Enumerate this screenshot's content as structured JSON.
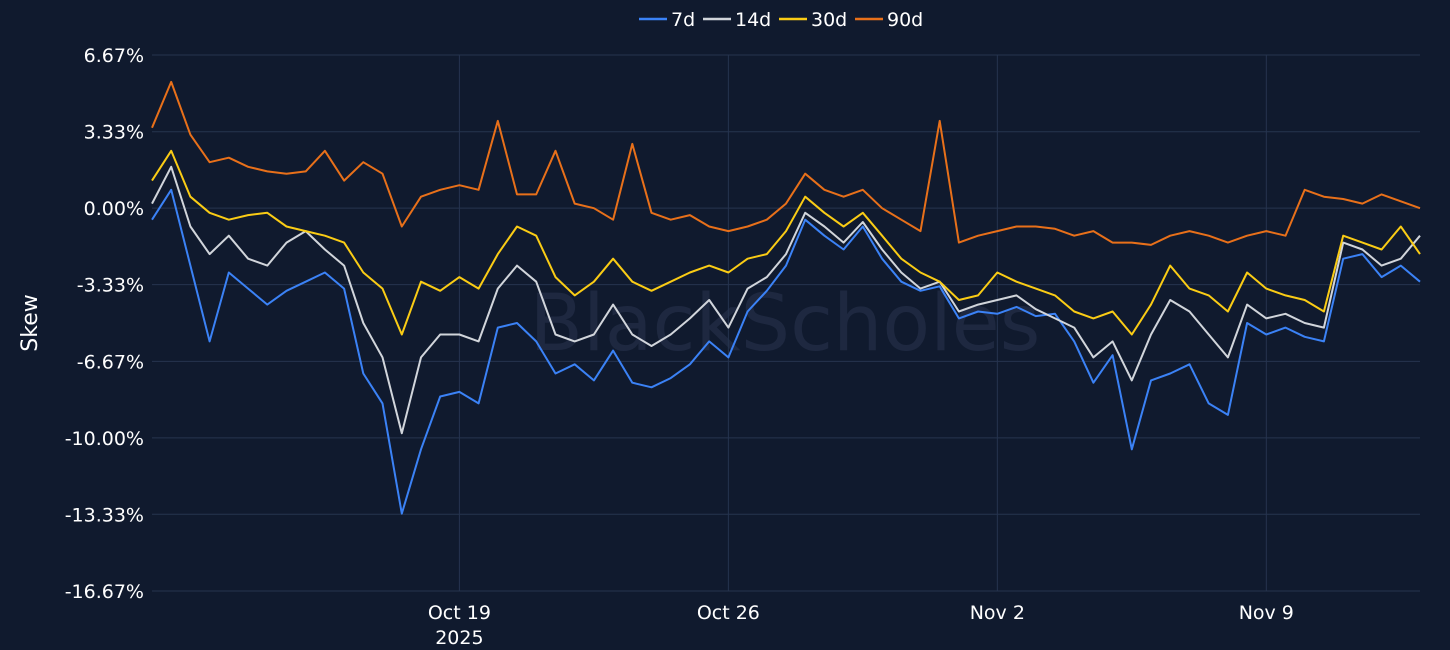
{
  "watermark": "BlackScholes",
  "chart_data": {
    "type": "line",
    "ylabel": "Skew",
    "xlabel": "",
    "title": "",
    "ylim": [
      -16.67,
      6.67
    ],
    "y_ticks": [
      {
        "value": 6.67,
        "label": "6.67%"
      },
      {
        "value": 3.33,
        "label": "3.33%"
      },
      {
        "value": 0,
        "label": "0.00%"
      },
      {
        "value": -3.33,
        "label": "-3.33%"
      },
      {
        "value": -6.67,
        "label": "-6.67%"
      },
      {
        "value": -10,
        "label": "-10.00%"
      },
      {
        "value": -13.33,
        "label": "-13.33%"
      },
      {
        "value": -16.67,
        "label": "-16.67%"
      }
    ],
    "x_range": [
      "2025-10-11",
      "2025-11-13"
    ],
    "x_ticks": [
      {
        "date": "2025-10-19",
        "label": "Oct 19",
        "sublabel": "2025"
      },
      {
        "date": "2025-10-26",
        "label": "Oct 26",
        "sublabel": ""
      },
      {
        "date": "2025-11-02",
        "label": "Nov 2",
        "sublabel": ""
      },
      {
        "date": "2025-11-09",
        "label": "Nov 9",
        "sublabel": ""
      }
    ],
    "grid": true,
    "legend_position": "top-center",
    "series": [
      {
        "name": "7d",
        "color": "#3b82f6",
        "x": [
          "2025-10-11",
          "2025-10-11T12",
          "2025-10-12",
          "2025-10-12T12",
          "2025-10-13",
          "2025-10-13T12",
          "2025-10-14",
          "2025-10-14T12",
          "2025-10-15",
          "2025-10-15T12",
          "2025-10-16",
          "2025-10-16T12",
          "2025-10-17",
          "2025-10-17T12",
          "2025-10-18",
          "2025-10-18T12",
          "2025-10-19",
          "2025-10-19T12",
          "2025-10-20",
          "2025-10-20T12",
          "2025-10-21",
          "2025-10-21T12",
          "2025-10-22",
          "2025-10-22T12",
          "2025-10-23",
          "2025-10-23T12",
          "2025-10-24",
          "2025-10-24T12",
          "2025-10-25",
          "2025-10-25T12",
          "2025-10-26",
          "2025-10-26T12",
          "2025-10-27",
          "2025-10-27T12",
          "2025-10-28",
          "2025-10-28T12",
          "2025-10-29",
          "2025-10-29T12",
          "2025-10-30",
          "2025-10-30T12",
          "2025-10-31",
          "2025-10-31T12",
          "2025-11-01",
          "2025-11-01T12",
          "2025-11-02",
          "2025-11-02T12",
          "2025-11-03",
          "2025-11-03T12",
          "2025-11-04",
          "2025-11-04T12",
          "2025-11-05",
          "2025-11-05T12",
          "2025-11-06",
          "2025-11-06T12",
          "2025-11-07",
          "2025-11-07T12",
          "2025-11-08",
          "2025-11-08T12",
          "2025-11-09",
          "2025-11-09T12",
          "2025-11-10",
          "2025-11-10T12",
          "2025-11-11",
          "2025-11-11T12",
          "2025-11-12",
          "2025-11-12T12",
          "2025-11-13"
        ],
        "values": [
          -0.5,
          0.8,
          -2.5,
          -5.8,
          -2.8,
          -3.5,
          -4.2,
          -3.6,
          -3.2,
          -2.8,
          -3.5,
          -7.2,
          -8.5,
          -13.3,
          -10.5,
          -8.2,
          -8.0,
          -8.5,
          -5.2,
          -5.0,
          -5.8,
          -7.2,
          -6.8,
          -7.5,
          -6.2,
          -7.6,
          -7.8,
          -7.4,
          -6.8,
          -5.8,
          -6.5,
          -4.5,
          -3.6,
          -2.5,
          -0.5,
          -1.2,
          -1.8,
          -0.8,
          -2.2,
          -3.2,
          -3.6,
          -3.4,
          -4.8,
          -4.5,
          -4.6,
          -4.3,
          -4.7,
          -4.6,
          -5.8,
          -7.6,
          -6.4,
          -10.5,
          -7.5,
          -7.2,
          -6.8,
          -8.5,
          -9.0,
          -5.0,
          -5.5,
          -5.2,
          -5.6,
          -5.8,
          -2.2,
          -2.0,
          -3.0,
          -2.5,
          -3.2
        ]
      },
      {
        "name": "14d",
        "color": "#d1d5db",
        "x": [
          "2025-10-11",
          "2025-10-11T12",
          "2025-10-12",
          "2025-10-12T12",
          "2025-10-13",
          "2025-10-13T12",
          "2025-10-14",
          "2025-10-14T12",
          "2025-10-15",
          "2025-10-15T12",
          "2025-10-16",
          "2025-10-16T12",
          "2025-10-17",
          "2025-10-17T12",
          "2025-10-18",
          "2025-10-18T12",
          "2025-10-19",
          "2025-10-19T12",
          "2025-10-20",
          "2025-10-20T12",
          "2025-10-21",
          "2025-10-21T12",
          "2025-10-22",
          "2025-10-22T12",
          "2025-10-23",
          "2025-10-23T12",
          "2025-10-24",
          "2025-10-24T12",
          "2025-10-25",
          "2025-10-25T12",
          "2025-10-26",
          "2025-10-26T12",
          "2025-10-27",
          "2025-10-27T12",
          "2025-10-28",
          "2025-10-28T12",
          "2025-10-29",
          "2025-10-29T12",
          "2025-10-30",
          "2025-10-30T12",
          "2025-10-31",
          "2025-10-31T12",
          "2025-11-01",
          "2025-11-01T12",
          "2025-11-02",
          "2025-11-02T12",
          "2025-11-03",
          "2025-11-03T12",
          "2025-11-04",
          "2025-11-04T12",
          "2025-11-05",
          "2025-11-05T12",
          "2025-11-06",
          "2025-11-06T12",
          "2025-11-07",
          "2025-11-07T12",
          "2025-11-08",
          "2025-11-08T12",
          "2025-11-09",
          "2025-11-09T12",
          "2025-11-10",
          "2025-11-10T12",
          "2025-11-11",
          "2025-11-11T12",
          "2025-11-12",
          "2025-11-12T12",
          "2025-11-13"
        ],
        "values": [
          0.2,
          1.8,
          -0.8,
          -2.0,
          -1.2,
          -2.2,
          -2.5,
          -1.5,
          -1.0,
          -1.8,
          -2.5,
          -5.0,
          -6.5,
          -9.8,
          -6.5,
          -5.5,
          -5.5,
          -5.8,
          -3.5,
          -2.5,
          -3.2,
          -5.5,
          -5.8,
          -5.5,
          -4.2,
          -5.5,
          -6.0,
          -5.5,
          -4.8,
          -4.0,
          -5.2,
          -3.5,
          -3.0,
          -2.0,
          -0.2,
          -0.8,
          -1.5,
          -0.6,
          -1.8,
          -2.8,
          -3.5,
          -3.2,
          -4.5,
          -4.2,
          -4.0,
          -3.8,
          -4.4,
          -4.8,
          -5.2,
          -6.5,
          -5.8,
          -7.5,
          -5.5,
          -4.0,
          -4.5,
          -5.5,
          -6.5,
          -4.2,
          -4.8,
          -4.6,
          -5.0,
          -5.2,
          -1.5,
          -1.8,
          -2.5,
          -2.2,
          -1.2
        ]
      },
      {
        "name": "30d",
        "color": "#facc15",
        "x": [
          "2025-10-11",
          "2025-10-11T12",
          "2025-10-12",
          "2025-10-12T12",
          "2025-10-13",
          "2025-10-13T12",
          "2025-10-14",
          "2025-10-14T12",
          "2025-10-15",
          "2025-10-15T12",
          "2025-10-16",
          "2025-10-16T12",
          "2025-10-17",
          "2025-10-17T12",
          "2025-10-18",
          "2025-10-18T12",
          "2025-10-19",
          "2025-10-19T12",
          "2025-10-20",
          "2025-10-20T12",
          "2025-10-21",
          "2025-10-21T12",
          "2025-10-22",
          "2025-10-22T12",
          "2025-10-23",
          "2025-10-23T12",
          "2025-10-24",
          "2025-10-24T12",
          "2025-10-25",
          "2025-10-25T12",
          "2025-10-26",
          "2025-10-26T12",
          "2025-10-27",
          "2025-10-27T12",
          "2025-10-28",
          "2025-10-28T12",
          "2025-10-29",
          "2025-10-29T12",
          "2025-10-30",
          "2025-10-30T12",
          "2025-10-31",
          "2025-10-31T12",
          "2025-11-01",
          "2025-11-01T12",
          "2025-11-02",
          "2025-11-02T12",
          "2025-11-03",
          "2025-11-03T12",
          "2025-11-04",
          "2025-11-04T12",
          "2025-11-05",
          "2025-11-05T12",
          "2025-11-06",
          "2025-11-06T12",
          "2025-11-07",
          "2025-11-07T12",
          "2025-11-08",
          "2025-11-08T12",
          "2025-11-09",
          "2025-11-09T12",
          "2025-11-10",
          "2025-11-10T12",
          "2025-11-11",
          "2025-11-11T12",
          "2025-11-12",
          "2025-11-12T12",
          "2025-11-13"
        ],
        "values": [
          1.2,
          2.5,
          0.5,
          -0.2,
          -0.5,
          -0.3,
          -0.2,
          -0.8,
          -1.0,
          -1.2,
          -1.5,
          -2.8,
          -3.5,
          -5.5,
          -3.2,
          -3.6,
          -3.0,
          -3.5,
          -2.0,
          -0.8,
          -1.2,
          -3.0,
          -3.8,
          -3.2,
          -2.2,
          -3.2,
          -3.6,
          -3.2,
          -2.8,
          -2.5,
          -2.8,
          -2.2,
          -2.0,
          -1.0,
          0.5,
          -0.2,
          -0.8,
          -0.2,
          -1.2,
          -2.2,
          -2.8,
          -3.2,
          -4.0,
          -3.8,
          -2.8,
          -3.2,
          -3.5,
          -3.8,
          -4.5,
          -4.8,
          -4.5,
          -5.5,
          -4.2,
          -2.5,
          -3.5,
          -3.8,
          -4.5,
          -2.8,
          -3.5,
          -3.8,
          -4.0,
          -4.5,
          -1.2,
          -1.5,
          -1.8,
          -0.8,
          -2.0
        ]
      },
      {
        "name": "90d",
        "color": "#e8701a",
        "x": [
          "2025-10-11",
          "2025-10-11T12",
          "2025-10-12",
          "2025-10-12T12",
          "2025-10-13",
          "2025-10-13T12",
          "2025-10-14",
          "2025-10-14T12",
          "2025-10-15",
          "2025-10-15T12",
          "2025-10-16",
          "2025-10-16T12",
          "2025-10-17",
          "2025-10-17T12",
          "2025-10-18",
          "2025-10-18T12",
          "2025-10-19",
          "2025-10-19T12",
          "2025-10-20",
          "2025-10-20T12",
          "2025-10-21",
          "2025-10-21T12",
          "2025-10-22",
          "2025-10-22T12",
          "2025-10-23",
          "2025-10-23T12",
          "2025-10-24",
          "2025-10-24T12",
          "2025-10-25",
          "2025-10-25T12",
          "2025-10-26",
          "2025-10-26T12",
          "2025-10-27",
          "2025-10-27T12",
          "2025-10-28",
          "2025-10-28T12",
          "2025-10-29",
          "2025-10-29T12",
          "2025-10-30",
          "2025-10-30T12",
          "2025-10-31",
          "2025-10-31T12",
          "2025-11-01",
          "2025-11-01T12",
          "2025-11-02",
          "2025-11-02T12",
          "2025-11-03",
          "2025-11-03T12",
          "2025-11-04",
          "2025-11-04T12",
          "2025-11-05",
          "2025-11-05T12",
          "2025-11-06",
          "2025-11-06T12",
          "2025-11-07",
          "2025-11-07T12",
          "2025-11-08",
          "2025-11-08T12",
          "2025-11-09",
          "2025-11-09T12",
          "2025-11-10",
          "2025-11-10T12",
          "2025-11-11",
          "2025-11-11T12",
          "2025-11-12",
          "2025-11-12T12",
          "2025-11-13"
        ],
        "values": [
          3.5,
          5.5,
          3.2,
          2.0,
          2.2,
          1.8,
          1.6,
          1.5,
          1.6,
          2.5,
          1.2,
          2.0,
          1.5,
          -0.8,
          0.5,
          0.8,
          1.0,
          0.8,
          3.8,
          0.6,
          0.6,
          2.5,
          0.2,
          0.0,
          -0.5,
          2.8,
          -0.2,
          -0.5,
          -0.3,
          -0.8,
          -1.0,
          -0.8,
          -0.5,
          0.2,
          1.5,
          0.8,
          0.5,
          0.8,
          0.0,
          -0.5,
          -1.0,
          3.8,
          -1.5,
          -1.2,
          -1.0,
          -0.8,
          -0.8,
          -0.9,
          -1.2,
          -1.0,
          -1.5,
          -1.5,
          -1.6,
          -1.2,
          -1.0,
          -1.2,
          -1.5,
          -1.2,
          -1.0,
          -1.2,
          0.8,
          0.5,
          0.4,
          0.2,
          0.6,
          0.3,
          0.0
        ]
      }
    ]
  }
}
